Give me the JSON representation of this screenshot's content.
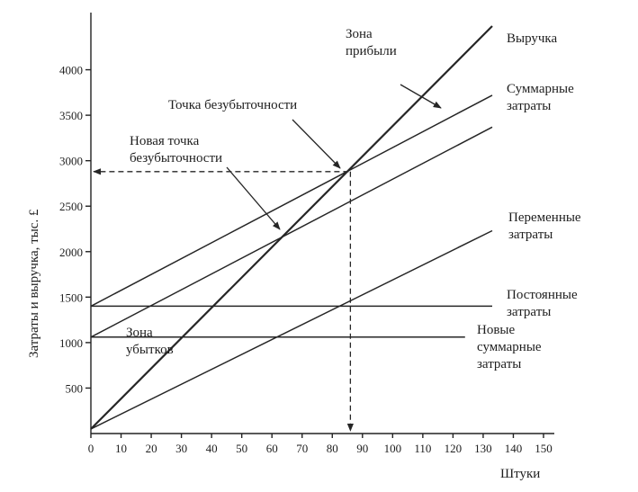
{
  "chart_data": {
    "type": "line",
    "title": "",
    "xlabel": "Штуки",
    "ylabel": "Затраты и выручка, тыс. £",
    "xlim": [
      0,
      150
    ],
    "ylim": [
      0,
      4500
    ],
    "xticks": [
      0,
      10,
      20,
      30,
      40,
      50,
      60,
      70,
      80,
      90,
      100,
      110,
      120,
      130,
      140,
      150
    ],
    "yticks": [
      500,
      1000,
      1500,
      2000,
      2500,
      3000,
      3500,
      4000
    ],
    "grid": false,
    "series": [
      {
        "name": "Выручка",
        "x": [
          0,
          133
        ],
        "y": [
          50,
          4480
        ],
        "style": "thick"
      },
      {
        "name": "Суммарные затраты",
        "x": [
          0,
          133
        ],
        "y": [
          1400,
          3720
        ],
        "style": "normal"
      },
      {
        "name": "Новые суммарные затраты",
        "x": [
          0,
          133
        ],
        "y": [
          1060,
          3370
        ],
        "style": "normal"
      },
      {
        "name": "Переменные затраты",
        "x": [
          0,
          133
        ],
        "y": [
          50,
          2230
        ],
        "style": "normal"
      },
      {
        "name": "Постоянные затраты",
        "x": [
          0,
          133
        ],
        "y": [
          1400,
          1400
        ],
        "style": "normal"
      },
      {
        "name": "",
        "x": [
          0,
          124
        ],
        "y": [
          1060,
          1060
        ],
        "style": "normal"
      }
    ],
    "break_even": {
      "x": 86,
      "y": 2880
    },
    "annotations": [
      {
        "id": "revenue",
        "lines": [
          "Выручка"
        ]
      },
      {
        "id": "total-costs",
        "lines": [
          "Суммарные",
          "затраты"
        ]
      },
      {
        "id": "profit-zone",
        "lines": [
          "Зона",
          "прибыли"
        ]
      },
      {
        "id": "break-even",
        "lines": [
          "Точка безубыточности"
        ]
      },
      {
        "id": "new-break-even",
        "lines": [
          "Новая точка",
          "безубыточности"
        ]
      },
      {
        "id": "variable-costs",
        "lines": [
          "Переменные",
          "затраты"
        ]
      },
      {
        "id": "fixed-costs",
        "lines": [
          "Постоянные",
          "затраты"
        ]
      },
      {
        "id": "new-total-costs",
        "lines": [
          "Новые",
          "суммарные",
          "затраты"
        ]
      },
      {
        "id": "loss-zone",
        "lines": [
          "Зона",
          "убытков"
        ]
      }
    ]
  }
}
